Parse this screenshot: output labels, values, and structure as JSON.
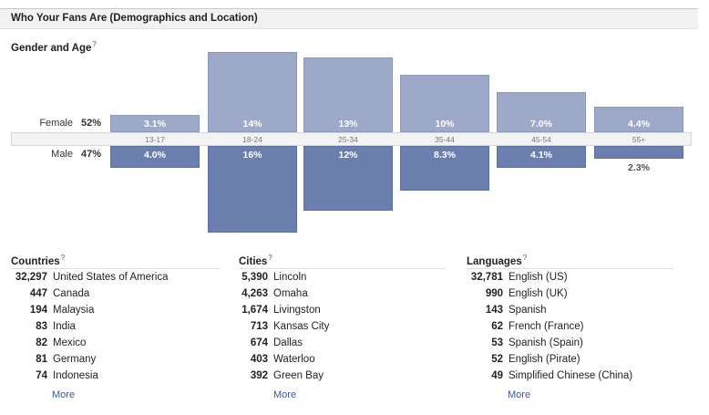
{
  "header": {
    "title": "Who Your Fans Are (Demographics and Location)"
  },
  "gender_age": {
    "title": "Gender and Age",
    "help": "?",
    "female": {
      "label": "Female",
      "pct": "52%"
    },
    "male": {
      "label": "Male",
      "pct": "47%"
    },
    "age_groups": [
      "13-17",
      "18-24",
      "25-34",
      "35-44",
      "45-54",
      "55+"
    ],
    "female_values": [
      "3.1%",
      "14%",
      "13%",
      "10%",
      "7.0%",
      "4.4%"
    ],
    "male_values": [
      "4.0%",
      "16%",
      "12%",
      "8.3%",
      "4.1%",
      "2.3%"
    ],
    "colors": {
      "female": "#9ea9c9",
      "male": "#6b7fae"
    }
  },
  "countries": {
    "title": "Countries",
    "help": "?",
    "items": [
      {
        "count": "32,297",
        "name": "United States of America"
      },
      {
        "count": "447",
        "name": "Canada"
      },
      {
        "count": "194",
        "name": "Malaysia"
      },
      {
        "count": "83",
        "name": "India"
      },
      {
        "count": "82",
        "name": "Mexico"
      },
      {
        "count": "81",
        "name": "Germany"
      },
      {
        "count": "74",
        "name": "Indonesia"
      }
    ],
    "more": "More"
  },
  "cities": {
    "title": "Cities",
    "help": "?",
    "items": [
      {
        "count": "5,390",
        "name": "Lincoln"
      },
      {
        "count": "4,263",
        "name": "Omaha"
      },
      {
        "count": "1,674",
        "name": "Livingston"
      },
      {
        "count": "713",
        "name": "Kansas City"
      },
      {
        "count": "674",
        "name": "Dallas"
      },
      {
        "count": "403",
        "name": "Waterloo"
      },
      {
        "count": "392",
        "name": "Green Bay"
      }
    ],
    "more": "More"
  },
  "languages": {
    "title": "Languages",
    "help": "?",
    "items": [
      {
        "count": "32,781",
        "name": "English (US)"
      },
      {
        "count": "990",
        "name": "English (UK)"
      },
      {
        "count": "143",
        "name": "Spanish"
      },
      {
        "count": "62",
        "name": "French (France)"
      },
      {
        "count": "53",
        "name": "Spanish (Spain)"
      },
      {
        "count": "52",
        "name": "English (Pirate)"
      },
      {
        "count": "49",
        "name": "Simplified Chinese (China)"
      }
    ],
    "more": "More"
  }
}
